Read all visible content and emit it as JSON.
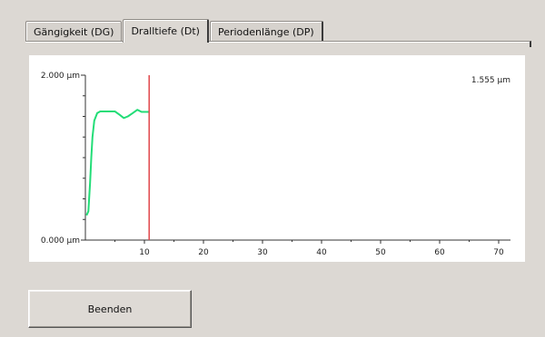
{
  "tabs": [
    {
      "label": "Gängigkeit (DG)",
      "active": false
    },
    {
      "label": "Dralltiefe (Dt)",
      "active": true
    },
    {
      "label": "Periodenlänge (DP)",
      "active": false
    }
  ],
  "chart": {
    "value_readout": "1.555 µm"
  },
  "chart_data": {
    "type": "line",
    "y_tick_labels": [
      "2.000 µm",
      "0.000 µm"
    ],
    "ylim": [
      0,
      2000
    ],
    "xlim": [
      0,
      72
    ],
    "x_ticks": [
      10,
      20,
      30,
      40,
      50,
      60,
      70
    ],
    "cursor_x": 10.8,
    "series": [
      {
        "color": "#22dd77",
        "x": [
          0.2,
          0.5,
          0.8,
          1.0,
          1.2,
          1.5,
          2.0,
          2.5,
          3.0,
          4.0,
          5.0,
          5.8,
          6.5,
          7.2,
          8.0,
          8.8,
          9.5,
          10.3,
          10.8
        ],
        "y": [
          300,
          350,
          700,
          1000,
          1250,
          1450,
          1540,
          1560,
          1560,
          1560,
          1560,
          1520,
          1480,
          1500,
          1540,
          1580,
          1555,
          1555,
          1555
        ]
      }
    ],
    "cursor_color": "#e0474c",
    "grid": false
  },
  "footer": {
    "close_label": "Beenden"
  }
}
